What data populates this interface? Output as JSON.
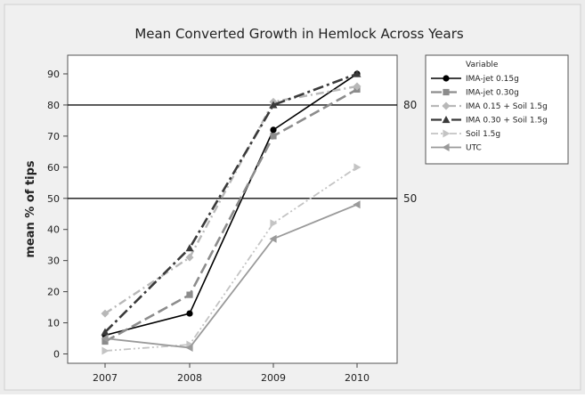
{
  "chart_data": {
    "type": "line",
    "title": "Mean Converted Growth in Hemlock Across Years",
    "xlabel": "",
    "ylabel": "mean % of tips",
    "x": [
      "2007",
      "2008",
      "2009",
      "2010"
    ],
    "ylim": [
      -3,
      96
    ],
    "yticks": [
      0,
      10,
      20,
      30,
      40,
      50,
      60,
      70,
      80,
      90
    ],
    "legend_title": "Variable",
    "legend_position": "right",
    "series": [
      {
        "name": "IMA-jet 0.15g",
        "values": [
          6,
          13,
          72,
          90
        ],
        "color": "#000000",
        "dash": "solid",
        "marker": "circle",
        "width": 1.6
      },
      {
        "name": "IMA-jet 0.30g",
        "values": [
          4,
          19,
          70,
          85
        ],
        "color": "#8c8c8c",
        "dash": "long-dash",
        "marker": "square",
        "width": 2.6
      },
      {
        "name": "IMA 0.15 + Soil 1.5g",
        "values": [
          13,
          31,
          81,
          86
        ],
        "color": "#b8b8b8",
        "dash": "dash-dot",
        "marker": "diamond",
        "width": 2.4
      },
      {
        "name": "IMA 0.30 + Soil 1.5g",
        "values": [
          7,
          34,
          80,
          90
        ],
        "color": "#3a3a3a",
        "dash": "dash-dot-long",
        "marker": "triangle-up",
        "width": 2.6
      },
      {
        "name": "Soil 1.5g",
        "values": [
          1,
          3,
          42,
          60
        ],
        "color": "#c4c4c4",
        "dash": "dash-dot-dot",
        "marker": "triangle-right",
        "width": 1.8
      },
      {
        "name": "UTC",
        "values": [
          5,
          2,
          37,
          48
        ],
        "color": "#9a9a9a",
        "dash": "solid",
        "marker": "triangle-left",
        "width": 1.8
      }
    ],
    "reference_lines": [
      {
        "y": 80,
        "label": "80"
      },
      {
        "y": 50,
        "label": "50"
      }
    ]
  }
}
